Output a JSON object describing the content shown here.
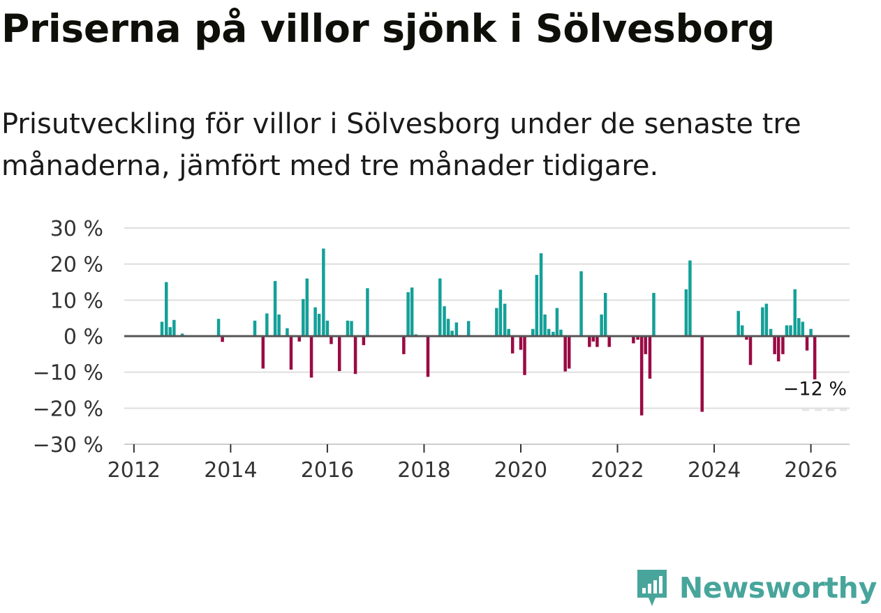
{
  "header": {
    "title": "Priserna på villor sjönk i Sölvesborg",
    "subtitle": "Prisutveckling för villor i Sölvesborg under de senaste tre månaderna, jämfört med tre månader tidigare."
  },
  "chart_data": {
    "type": "bar",
    "y_ticks": [
      {
        "value": 30,
        "label": "30 %"
      },
      {
        "value": 20,
        "label": "20 %"
      },
      {
        "value": 10,
        "label": "10 %"
      },
      {
        "value": 0,
        "label": "0 %"
      },
      {
        "value": -10,
        "label": "−10 %"
      },
      {
        "value": -20,
        "label": "−20 %"
      },
      {
        "value": -30,
        "label": "−30 %"
      }
    ],
    "x_ticks": [
      {
        "value": 2012,
        "label": "2012"
      },
      {
        "value": 2014,
        "label": "2014"
      },
      {
        "value": 2016,
        "label": "2016"
      },
      {
        "value": 2018,
        "label": "2018"
      },
      {
        "value": 2020,
        "label": "2020"
      },
      {
        "value": 2022,
        "label": "2022"
      },
      {
        "value": 2024,
        "label": "2024"
      },
      {
        "value": 2026,
        "label": "2026"
      }
    ],
    "xlim": [
      2011.8,
      2026.8
    ],
    "ylim": [
      -30,
      30
    ],
    "last_value_label": "−12 %",
    "colors": {
      "positive": "#14a098",
      "negative": "#9a0a44",
      "zero_line": "#555555",
      "grid": "#dddddd"
    },
    "series": [
      {
        "name": "Prisutveckling",
        "values": [
          {
            "x": 2012.58,
            "y": 4
          },
          {
            "x": 2012.67,
            "y": 15
          },
          {
            "x": 2012.75,
            "y": 2.5
          },
          {
            "x": 2012.83,
            "y": 4.5
          },
          {
            "x": 2013.0,
            "y": 0.7
          },
          {
            "x": 2013.75,
            "y": 4.8
          },
          {
            "x": 2013.83,
            "y": -1.6
          },
          {
            "x": 2014.5,
            "y": 4.3
          },
          {
            "x": 2014.67,
            "y": -9
          },
          {
            "x": 2014.75,
            "y": 6.3
          },
          {
            "x": 2014.92,
            "y": 15.3
          },
          {
            "x": 2015.0,
            "y": 6
          },
          {
            "x": 2015.17,
            "y": 2.2
          },
          {
            "x": 2015.25,
            "y": -9.3
          },
          {
            "x": 2015.42,
            "y": -1.5
          },
          {
            "x": 2015.5,
            "y": 10.3
          },
          {
            "x": 2015.58,
            "y": 16
          },
          {
            "x": 2015.67,
            "y": -11.5
          },
          {
            "x": 2015.75,
            "y": 8
          },
          {
            "x": 2015.83,
            "y": 6.2
          },
          {
            "x": 2015.92,
            "y": 24.3
          },
          {
            "x": 2016.0,
            "y": 4.3
          },
          {
            "x": 2016.08,
            "y": -2.2
          },
          {
            "x": 2016.25,
            "y": -9.7
          },
          {
            "x": 2016.42,
            "y": 4.3
          },
          {
            "x": 2016.5,
            "y": 4.2
          },
          {
            "x": 2016.58,
            "y": -10.5
          },
          {
            "x": 2016.75,
            "y": -2.5
          },
          {
            "x": 2016.83,
            "y": 13.3
          },
          {
            "x": 2017.58,
            "y": -5
          },
          {
            "x": 2017.67,
            "y": 12.2
          },
          {
            "x": 2017.75,
            "y": 13.5
          },
          {
            "x": 2017.83,
            "y": 0.5
          },
          {
            "x": 2018.08,
            "y": -11.3
          },
          {
            "x": 2018.33,
            "y": 16
          },
          {
            "x": 2018.42,
            "y": 8.3
          },
          {
            "x": 2018.5,
            "y": 4.8
          },
          {
            "x": 2018.58,
            "y": 1.5
          },
          {
            "x": 2018.67,
            "y": 3.8
          },
          {
            "x": 2018.92,
            "y": 4.2
          },
          {
            "x": 2019.5,
            "y": 7.8
          },
          {
            "x": 2019.58,
            "y": 12.9
          },
          {
            "x": 2019.67,
            "y": 9
          },
          {
            "x": 2019.75,
            "y": 2
          },
          {
            "x": 2019.83,
            "y": -4.8
          },
          {
            "x": 2020.0,
            "y": -3.8
          },
          {
            "x": 2020.08,
            "y": -10.8
          },
          {
            "x": 2020.25,
            "y": 2
          },
          {
            "x": 2020.33,
            "y": 17
          },
          {
            "x": 2020.42,
            "y": 23
          },
          {
            "x": 2020.5,
            "y": 6
          },
          {
            "x": 2020.58,
            "y": 2
          },
          {
            "x": 2020.67,
            "y": 1.2
          },
          {
            "x": 2020.75,
            "y": 7.8
          },
          {
            "x": 2020.83,
            "y": 1.8
          },
          {
            "x": 2020.92,
            "y": -9.8
          },
          {
            "x": 2021.0,
            "y": -9
          },
          {
            "x": 2021.25,
            "y": 18
          },
          {
            "x": 2021.42,
            "y": -3
          },
          {
            "x": 2021.5,
            "y": -1.5
          },
          {
            "x": 2021.58,
            "y": -3
          },
          {
            "x": 2021.67,
            "y": 6
          },
          {
            "x": 2021.75,
            "y": 12
          },
          {
            "x": 2021.83,
            "y": -3
          },
          {
            "x": 2022.33,
            "y": -2
          },
          {
            "x": 2022.42,
            "y": -1
          },
          {
            "x": 2022.5,
            "y": -22
          },
          {
            "x": 2022.58,
            "y": -5
          },
          {
            "x": 2022.67,
            "y": -11.8
          },
          {
            "x": 2022.75,
            "y": 12
          },
          {
            "x": 2023.42,
            "y": 13
          },
          {
            "x": 2023.5,
            "y": 21
          },
          {
            "x": 2023.75,
            "y": -21
          },
          {
            "x": 2024.5,
            "y": 7
          },
          {
            "x": 2024.58,
            "y": 3
          },
          {
            "x": 2024.67,
            "y": -1
          },
          {
            "x": 2024.75,
            "y": -8
          },
          {
            "x": 2025.0,
            "y": 8
          },
          {
            "x": 2025.08,
            "y": 9
          },
          {
            "x": 2025.17,
            "y": 2
          },
          {
            "x": 2025.25,
            "y": -5
          },
          {
            "x": 2025.33,
            "y": -7
          },
          {
            "x": 2025.42,
            "y": -5
          },
          {
            "x": 2025.5,
            "y": 3
          },
          {
            "x": 2025.58,
            "y": 3
          },
          {
            "x": 2025.67,
            "y": 13
          },
          {
            "x": 2025.75,
            "y": 5
          },
          {
            "x": 2025.83,
            "y": 4
          },
          {
            "x": 2025.92,
            "y": -4
          },
          {
            "x": 2026.0,
            "y": 2
          },
          {
            "x": 2026.08,
            "y": -12
          }
        ]
      }
    ]
  },
  "logo": {
    "text": "Newsworthy"
  }
}
